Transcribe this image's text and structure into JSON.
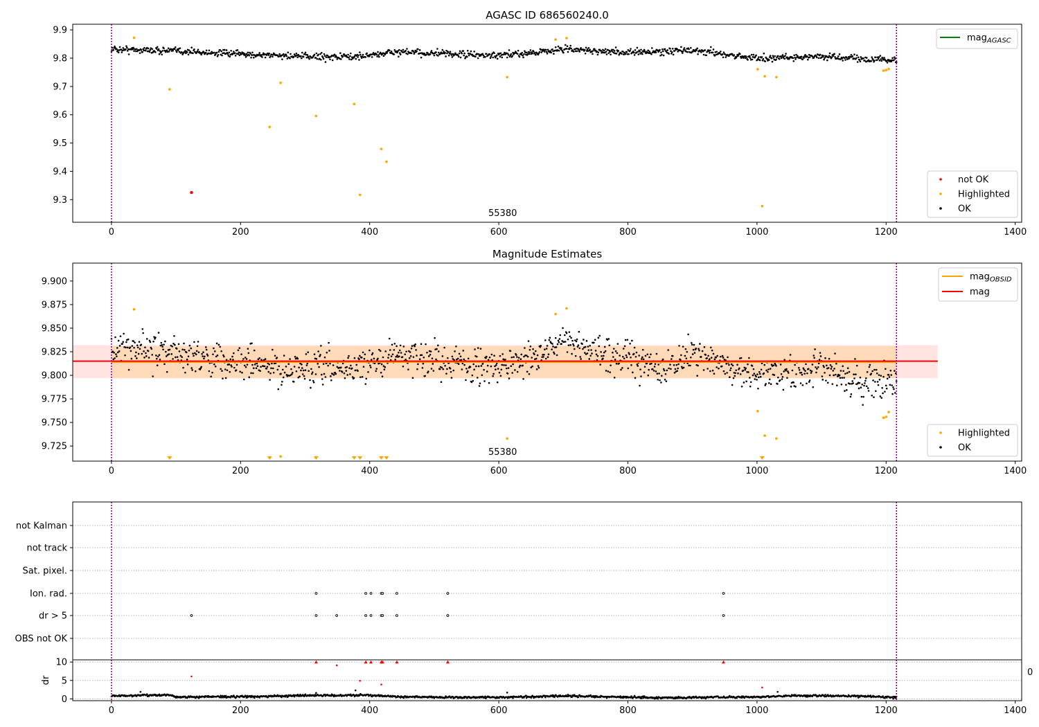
{
  "figure": {
    "background": "#ffffff"
  },
  "colors": {
    "ok": "#000000",
    "highlighted": "#ffa500",
    "not_ok": "#ff0000",
    "mag_agasc": "#008000",
    "mag_obsid": "#ffa500",
    "mag": "#ff0000",
    "band_obs": "#ffdab9",
    "band_mean": "#ffe4e1",
    "marker_line": "#800080",
    "grid": "#b0b0b0"
  },
  "chart_data": [
    {
      "id": "agasc",
      "type": "scatter",
      "title": "AGASC ID 686560240.0",
      "xlim": [
        -60,
        1410
      ],
      "ylim": [
        9.22,
        9.92
      ],
      "xticks": [
        0,
        200,
        400,
        600,
        800,
        1000,
        1200,
        1400
      ],
      "yticks": [
        9.3,
        9.4,
        9.5,
        9.6,
        9.7,
        9.8,
        9.9
      ],
      "ytick_decimals": 1,
      "vlines": [
        0,
        1216
      ],
      "obsid_label": {
        "text": "55380",
        "x": 606
      },
      "ok_trend": {
        "n": 1215,
        "base": 9.812,
        "noise": 0.011,
        "knots": [
          [
            0,
            9.832
          ],
          [
            100,
            9.826
          ],
          [
            180,
            9.816
          ],
          [
            300,
            9.806
          ],
          [
            380,
            9.805
          ],
          [
            440,
            9.822
          ],
          [
            520,
            9.815
          ],
          [
            600,
            9.808
          ],
          [
            700,
            9.832
          ],
          [
            800,
            9.82
          ],
          [
            900,
            9.828
          ],
          [
            1000,
            9.8
          ],
          [
            1100,
            9.806
          ],
          [
            1216,
            9.792
          ]
        ]
      },
      "not_ok": [
        {
          "x": 124,
          "y": 9.325
        }
      ],
      "highlighted": [
        {
          "x": 35,
          "y": 9.872
        },
        {
          "x": 90,
          "y": 9.69
        },
        {
          "x": 245,
          "y": 9.557
        },
        {
          "x": 262,
          "y": 9.713
        },
        {
          "x": 317,
          "y": 9.596
        },
        {
          "x": 376,
          "y": 9.638
        },
        {
          "x": 385,
          "y": 9.317
        },
        {
          "x": 418,
          "y": 9.479
        },
        {
          "x": 426,
          "y": 9.434
        },
        {
          "x": 613,
          "y": 9.733
        },
        {
          "x": 688,
          "y": 9.866
        },
        {
          "x": 705,
          "y": 9.871
        },
        {
          "x": 1001,
          "y": 9.761
        },
        {
          "x": 1008,
          "y": 9.277
        },
        {
          "x": 1012,
          "y": 9.736
        },
        {
          "x": 1030,
          "y": 9.733
        },
        {
          "x": 1196,
          "y": 9.756
        },
        {
          "x": 1200,
          "y": 9.758
        },
        {
          "x": 1204,
          "y": 9.762
        }
      ],
      "legend_lines": [
        {
          "label": "mag",
          "sub": "AGASC",
          "color_key": "mag_agasc"
        }
      ],
      "legend_points": [
        {
          "label": "not OK",
          "color_key": "not_ok"
        },
        {
          "label": "Highlighted",
          "color_key": "highlighted"
        },
        {
          "label": "OK",
          "color_key": "ok"
        }
      ]
    },
    {
      "id": "estimates",
      "type": "scatter",
      "title": "Magnitude Estimates",
      "xlim": [
        -60,
        1410
      ],
      "ylim": [
        9.709,
        9.919
      ],
      "xticks": [
        0,
        200,
        400,
        600,
        800,
        1000,
        1200,
        1400
      ],
      "yticks": [
        9.725,
        9.75,
        9.775,
        9.8,
        9.825,
        9.85,
        9.875,
        9.9
      ],
      "ytick_decimals": 3,
      "vlines": [
        0,
        1216
      ],
      "obsid_label": {
        "text": "55380",
        "x": 606
      },
      "mag_obsid": 9.814,
      "mag": 9.815,
      "band_obs": {
        "x": [
          0,
          1216
        ],
        "y": [
          9.797,
          9.831
        ]
      },
      "band_mean": {
        "x": [
          -60,
          1280
        ],
        "y": [
          9.797,
          9.832
        ]
      },
      "ok_trend": {
        "n": 1215,
        "base": 9.812,
        "noise": 0.016,
        "knots": [
          [
            0,
            9.83
          ],
          [
            100,
            9.823
          ],
          [
            180,
            9.816
          ],
          [
            280,
            9.805
          ],
          [
            380,
            9.808
          ],
          [
            440,
            9.822
          ],
          [
            520,
            9.815
          ],
          [
            600,
            9.808
          ],
          [
            700,
            9.834
          ],
          [
            800,
            9.818
          ],
          [
            850,
            9.805
          ],
          [
            900,
            9.824
          ],
          [
            1000,
            9.8
          ],
          [
            1100,
            9.806
          ],
          [
            1160,
            9.79
          ],
          [
            1216,
            9.795
          ]
        ]
      },
      "highlighted": [
        {
          "x": 35,
          "y": 9.87
        },
        {
          "x": 613,
          "y": 9.733
        },
        {
          "x": 688,
          "y": 9.865
        },
        {
          "x": 705,
          "y": 9.871
        },
        {
          "x": 1001,
          "y": 9.762
        },
        {
          "x": 1012,
          "y": 9.736
        },
        {
          "x": 1030,
          "y": 9.733
        },
        {
          "x": 1196,
          "y": 9.755
        },
        {
          "x": 1200,
          "y": 9.756
        },
        {
          "x": 1204,
          "y": 9.761
        },
        {
          "x": 262,
          "y": 9.714
        }
      ],
      "below_range": [
        90,
        245,
        317,
        376,
        385,
        418,
        426,
        1008
      ],
      "legend_lines": [
        {
          "label": "mag",
          "sub": "OBSID",
          "color_key": "mag_obsid"
        },
        {
          "label": "mag",
          "sub": "",
          "color_key": "mag"
        }
      ],
      "legend_points": [
        {
          "label": "Highlighted",
          "color_key": "highlighted"
        },
        {
          "label": "OK",
          "color_key": "ok"
        }
      ]
    },
    {
      "id": "flags",
      "type": "scatter",
      "xlim": [
        -60,
        1410
      ],
      "vlines": [
        0,
        1216
      ],
      "rows": [
        {
          "label": "not Kalman",
          "xs": []
        },
        {
          "label": "not track",
          "xs": []
        },
        {
          "label": "Sat. pixel.",
          "xs": []
        },
        {
          "label": "Ion. rad.",
          "xs": [
            317,
            394,
            402,
            418,
            420,
            442,
            521,
            948
          ]
        },
        {
          "label": "dr > 5",
          "xs": [
            124,
            317,
            349,
            394,
            402,
            418,
            420,
            442,
            521,
            948
          ]
        },
        {
          "label": "OBS not OK",
          "xs": []
        }
      ],
      "clipped_right_label": "0"
    },
    {
      "id": "dr",
      "type": "scatter",
      "ylabel": "dr",
      "xlim": [
        -60,
        1410
      ],
      "ylim": [
        -0.5,
        10.6
      ],
      "xticks": [
        0,
        200,
        400,
        600,
        800,
        1000,
        1200,
        1400
      ],
      "yticks": [
        0,
        5,
        10
      ],
      "vlines": [
        0,
        1216
      ],
      "dr_trend": {
        "n": 1215,
        "base": 0.7,
        "noise": 0.25,
        "knots": [
          [
            0,
            0.8
          ],
          [
            90,
            1.1
          ],
          [
            100,
            0.5
          ],
          [
            200,
            0.6
          ],
          [
            300,
            0.9
          ],
          [
            400,
            1.0
          ],
          [
            450,
            0.5
          ],
          [
            600,
            0.4
          ],
          [
            700,
            0.8
          ],
          [
            850,
            0.3
          ],
          [
            1000,
            0.5
          ],
          [
            1050,
            0.9
          ],
          [
            1150,
            0.8
          ],
          [
            1216,
            0.4
          ]
        ]
      },
      "extra_points": [
        {
          "x": 124,
          "y": 6.1
        },
        {
          "x": 349,
          "y": 9.1
        },
        {
          "x": 385,
          "y": 4.9
        },
        {
          "x": 418,
          "y": 3.9
        },
        {
          "x": 378,
          "y": 2.3
        },
        {
          "x": 613,
          "y": 1.7
        },
        {
          "x": 45,
          "y": 1.9
        },
        {
          "x": 317,
          "y": 1.6
        },
        {
          "x": 1008,
          "y": 3.1
        },
        {
          "x": 1032,
          "y": 1.9
        }
      ],
      "capped": [
        317,
        394,
        402,
        418,
        420,
        442,
        521,
        948
      ]
    }
  ]
}
